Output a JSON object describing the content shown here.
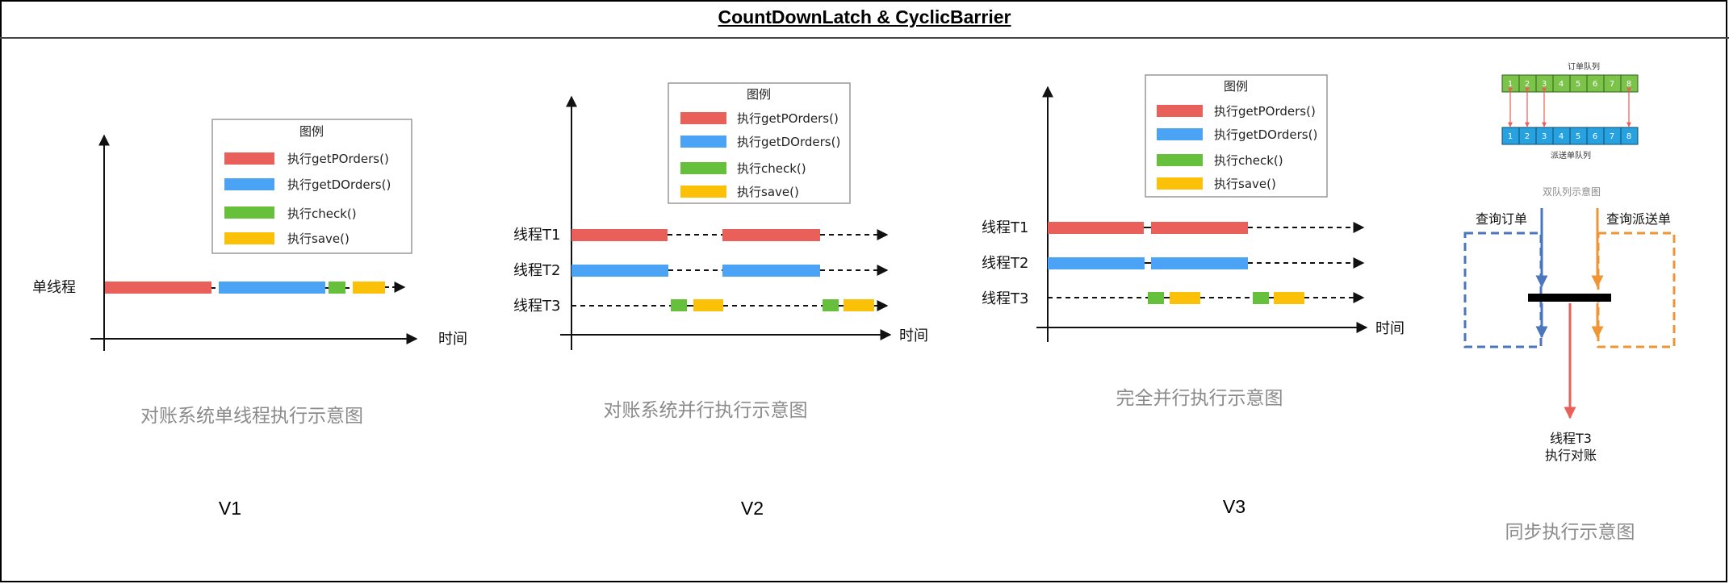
{
  "title": "CountDownLatch & CyclicBarrier",
  "colors": {
    "getPOrders": "#e95f5a",
    "getDOrders": "#4ba3f5",
    "check": "#66c03b",
    "save": "#fbc108",
    "queue_border": "#2f5f1e",
    "order_cell": "#7cc34a",
    "dispatch_cell": "#27a1df",
    "left_box": "#4a76bd",
    "right_box": "#f09536",
    "arrow_red": "#e95f5a"
  },
  "legend": {
    "title": "图例",
    "items": [
      "执行getPOrders()",
      "执行getDOrders()",
      "执行check()",
      "执行save()"
    ]
  },
  "v1": {
    "row_label": "单线程",
    "x_axis_label": "时间",
    "caption": "对账系统单线程执行示意图",
    "version": "V1"
  },
  "v2": {
    "rows": [
      "线程T1",
      "线程T2",
      "线程T3"
    ],
    "x_axis_label": "时间",
    "caption": "对账系统并行执行示意图",
    "version": "V2"
  },
  "v3": {
    "rows": [
      "线程T1",
      "线程T2",
      "线程T3"
    ],
    "x_axis_label": "时间",
    "caption": "完全并行执行示意图",
    "version": "V3"
  },
  "sync": {
    "order_queue_label": "订单队列",
    "dispatch_queue_label": "派送单队列",
    "cells": [
      "1",
      "2",
      "3",
      "4",
      "5",
      "6",
      "7",
      "8"
    ],
    "queue_caption": "双队列示意图",
    "left_query": "查询订单",
    "right_query": "查询派送单",
    "t3_label": "线程T3",
    "t3_action": "执行对账",
    "caption": "同步执行示意图"
  }
}
